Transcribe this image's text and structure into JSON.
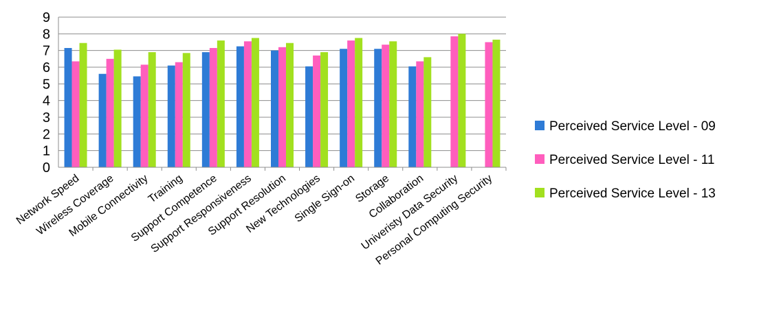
{
  "chart_data": {
    "type": "bar",
    "title": "",
    "xlabel": "",
    "ylabel": "",
    "ylim": [
      0,
      9
    ],
    "yticks": [
      0,
      1,
      2,
      3,
      4,
      5,
      6,
      7,
      8,
      9
    ],
    "grid": true,
    "legend_position": "right",
    "categories": [
      "Network Speed",
      "Wireless Coverage",
      "Mobile Connectivity",
      "Training",
      "Support Competence",
      "Support Responsiveness",
      "Support Resolution",
      "New Technologies",
      "Single Sign-on",
      "Storage",
      "Collaboration",
      "Univeristy Data Security",
      "Personal Computing Security"
    ],
    "series": [
      {
        "name": "Perceived Service Level - 09",
        "color": "#2e7bd6",
        "values": [
          7.15,
          5.6,
          5.45,
          6.1,
          6.9,
          7.25,
          7.0,
          6.05,
          7.1,
          7.1,
          6.05,
          null,
          null
        ]
      },
      {
        "name": "Perceived Service Level - 11",
        "color": "#ff5ebd",
        "values": [
          6.35,
          6.5,
          6.15,
          6.3,
          7.15,
          7.55,
          7.2,
          6.7,
          7.6,
          7.35,
          6.35,
          7.85,
          7.5
        ]
      },
      {
        "name": "Perceived Service Level - 13",
        "color": "#a2e01f",
        "values": [
          7.45,
          7.05,
          6.9,
          6.85,
          7.6,
          7.75,
          7.45,
          6.9,
          7.75,
          7.55,
          6.6,
          8.0,
          7.65
        ]
      }
    ]
  }
}
